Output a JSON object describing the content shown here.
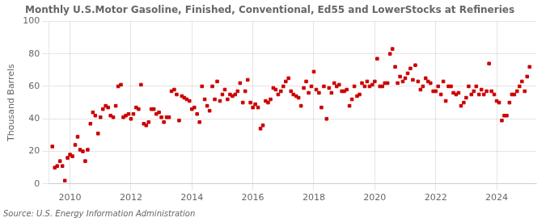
{
  "chart_data": {
    "type": "scatter",
    "title": "Monthly U.S.Motor Gasoline, Finished, Conventional, Ed55 and LowerStocks at Refineries",
    "ylabel": "Thousand Barrels",
    "source": "Source: U.S. Energy Information Administration",
    "color": "#cc0000",
    "marker": "square",
    "grid": true,
    "xlim": [
      2009.3,
      2025.3
    ],
    "xticks": [
      2010,
      2012,
      2014,
      2016,
      2018,
      2020,
      2022,
      2024
    ],
    "ylim": [
      0,
      100
    ],
    "yticks": [
      0,
      20,
      40,
      60,
      80,
      100
    ],
    "x": [
      2009.42,
      2009.5,
      2009.58,
      2009.67,
      2009.75,
      2009.83,
      2009.92,
      2010.0,
      2010.08,
      2010.17,
      2010.25,
      2010.33,
      2010.42,
      2010.5,
      2010.58,
      2010.67,
      2010.75,
      2010.83,
      2010.92,
      2011.0,
      2011.08,
      2011.17,
      2011.25,
      2011.33,
      2011.42,
      2011.5,
      2011.58,
      2011.67,
      2011.75,
      2011.83,
      2011.92,
      2012.0,
      2012.08,
      2012.17,
      2012.25,
      2012.33,
      2012.42,
      2012.5,
      2012.58,
      2012.67,
      2012.75,
      2012.83,
      2012.92,
      2013.0,
      2013.08,
      2013.17,
      2013.25,
      2013.33,
      2013.42,
      2013.5,
      2013.58,
      2013.67,
      2013.75,
      2013.83,
      2013.92,
      2014.0,
      2014.08,
      2014.17,
      2014.25,
      2014.33,
      2014.42,
      2014.5,
      2014.58,
      2014.67,
      2014.75,
      2014.83,
      2014.92,
      2015.0,
      2015.08,
      2015.17,
      2015.25,
      2015.33,
      2015.42,
      2015.5,
      2015.58,
      2015.67,
      2015.75,
      2015.83,
      2015.92,
      2016.0,
      2016.08,
      2016.17,
      2016.25,
      2016.33,
      2016.42,
      2016.5,
      2016.58,
      2016.67,
      2016.75,
      2016.83,
      2016.92,
      2017.0,
      2017.08,
      2017.17,
      2017.25,
      2017.33,
      2017.42,
      2017.5,
      2017.58,
      2017.67,
      2017.75,
      2017.83,
      2017.92,
      2018.0,
      2018.08,
      2018.17,
      2018.25,
      2018.33,
      2018.42,
      2018.5,
      2018.58,
      2018.67,
      2018.75,
      2018.83,
      2018.92,
      2019.0,
      2019.08,
      2019.17,
      2019.25,
      2019.33,
      2019.42,
      2019.5,
      2019.58,
      2019.67,
      2019.75,
      2019.83,
      2019.92,
      2020.0,
      2020.08,
      2020.17,
      2020.25,
      2020.33,
      2020.42,
      2020.5,
      2020.58,
      2020.67,
      2020.75,
      2020.83,
      2020.92,
      2021.0,
      2021.08,
      2021.17,
      2021.25,
      2021.33,
      2021.42,
      2021.5,
      2021.58,
      2021.67,
      2021.75,
      2021.83,
      2021.92,
      2022.0,
      2022.08,
      2022.17,
      2022.25,
      2022.33,
      2022.42,
      2022.5,
      2022.58,
      2022.67,
      2022.75,
      2022.83,
      2022.92,
      2023.0,
      2023.08,
      2023.17,
      2023.25,
      2023.33,
      2023.42,
      2023.5,
      2023.58,
      2023.67,
      2023.75,
      2023.83,
      2023.92,
      2024.0,
      2024.08,
      2024.17,
      2024.25,
      2024.33,
      2024.42,
      2024.5,
      2024.58,
      2024.67,
      2024.75,
      2024.83,
      2024.92,
      2025.0,
      2025.08
    ],
    "values": [
      23,
      10,
      11,
      14,
      11,
      2,
      16,
      18,
      17,
      24,
      29,
      21,
      20,
      14,
      21,
      37,
      44,
      42,
      31,
      41,
      46,
      48,
      47,
      42,
      41,
      48,
      60,
      61,
      41,
      42,
      43,
      40,
      43,
      47,
      46,
      61,
      37,
      36,
      38,
      46,
      46,
      43,
      44,
      41,
      38,
      41,
      41,
      57,
      58,
      55,
      39,
      54,
      53,
      52,
      51,
      46,
      47,
      43,
      38,
      60,
      52,
      48,
      45,
      60,
      52,
      63,
      51,
      55,
      58,
      52,
      55,
      54,
      55,
      57,
      62,
      50,
      57,
      64,
      50,
      47,
      49,
      47,
      34,
      36,
      51,
      50,
      52,
      59,
      58,
      55,
      57,
      60,
      63,
      65,
      57,
      55,
      54,
      53,
      48,
      59,
      63,
      56,
      60,
      69,
      58,
      56,
      47,
      60,
      40,
      59,
      56,
      62,
      60,
      61,
      57,
      57,
      58,
      48,
      52,
      60,
      54,
      55,
      62,
      60,
      63,
      60,
      61,
      63,
      77,
      60,
      60,
      62,
      62,
      80,
      83,
      72,
      62,
      66,
      63,
      65,
      68,
      71,
      64,
      73,
      63,
      58,
      60,
      65,
      63,
      62,
      57,
      57,
      60,
      55,
      63,
      51,
      60,
      60,
      56,
      55,
      56,
      48,
      50,
      53,
      60,
      55,
      57,
      60,
      55,
      58,
      55,
      57,
      74,
      57,
      55,
      51,
      50,
      39,
      42,
      42,
      50,
      55,
      55,
      57,
      60,
      63,
      57,
      66,
      72
    ]
  }
}
